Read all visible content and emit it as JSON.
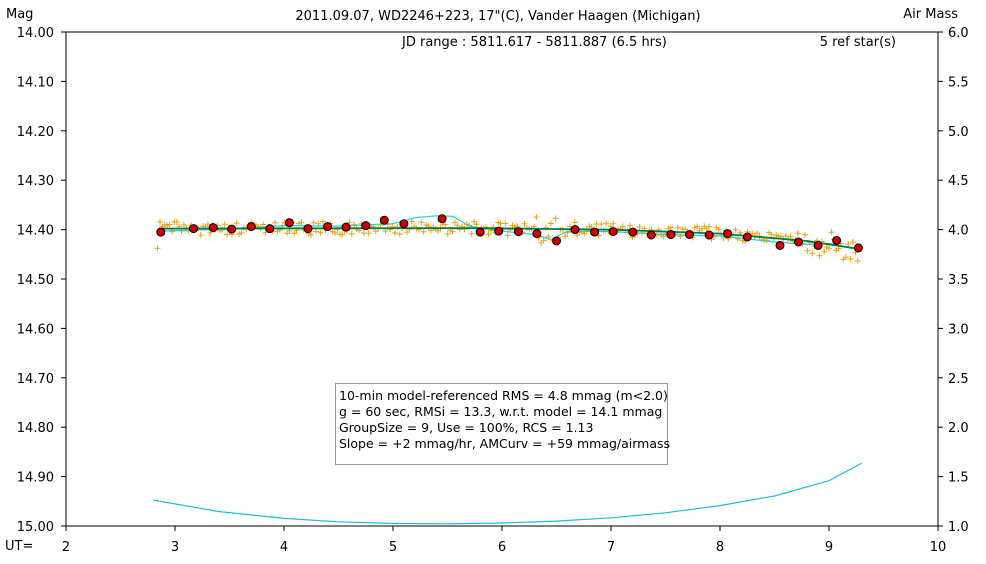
{
  "chart_data": {
    "type": "scatter",
    "title": "2011.09.07, WD2246+223, 17\"(C), Vander Haagen (Michigan)",
    "ylabel": "Mag",
    "y2label": "Air Mass",
    "xlabel": "UT=",
    "jd_range": "JD range : 5811.617 - 5811.887 (6.5 hrs)",
    "ref_stars": "5 ref star(s)",
    "xlim": [
      2,
      10
    ],
    "ylim": [
      15.0,
      14.0
    ],
    "y2lim": [
      1.0,
      6.0
    ],
    "x_ticks": [
      "2",
      "3",
      "4",
      "5",
      "6",
      "7",
      "8",
      "9",
      "10"
    ],
    "y_ticks": [
      "14.00",
      "14.10",
      "14.20",
      "14.30",
      "14.40",
      "14.50",
      "14.60",
      "14.70",
      "14.80",
      "14.90",
      "15.00"
    ],
    "y2_ticks": [
      "6.0",
      "5.5",
      "5.0",
      "4.5",
      "4.0",
      "3.5",
      "3.0",
      "2.5",
      "2.0",
      "1.5",
      "1.0"
    ],
    "stats": [
      "10-min model-referenced RMS = 4.8 mmag (m<2.0)",
      "g = 60 sec, RMSi = 13.3, w.r.t. model = 14.1 mmag",
      "GroupSize = 9, Use = 100%, RCS = 1.13",
      "Slope = +2 mmag/hr, AMCurv = +59 mmag/airmass"
    ],
    "colors": {
      "individual": "#e8a317",
      "binned_fill": "#cc0000",
      "model": "#007a4a",
      "smooth": "#33cccc",
      "airmass": "#22bbdd"
    },
    "series": [
      {
        "kind": "binned",
        "x": [
          2.87,
          3.17,
          3.35,
          3.52,
          3.7,
          3.87,
          4.05,
          4.22,
          4.4,
          4.57,
          4.75,
          4.92,
          5.1,
          5.45,
          5.8,
          5.97,
          6.15,
          6.32,
          6.5,
          6.67,
          6.85,
          7.02,
          7.2,
          7.37,
          7.55,
          7.72,
          7.9,
          8.07,
          8.25,
          8.55,
          8.72,
          8.9,
          9.07,
          9.27
        ],
        "y": [
          14.405,
          14.398,
          14.396,
          14.399,
          14.394,
          14.398,
          14.386,
          14.398,
          14.394,
          14.395,
          14.392,
          14.381,
          14.388,
          14.378,
          14.405,
          14.403,
          14.404,
          14.408,
          14.423,
          14.4,
          14.405,
          14.404,
          14.405,
          14.411,
          14.41,
          14.41,
          14.411,
          14.408,
          14.415,
          14.432,
          14.425,
          14.432,
          14.422,
          14.437
        ]
      },
      {
        "kind": "model",
        "x": [
          2.85,
          5.7,
          7.0,
          8.0,
          8.8,
          9.3
        ],
        "y": [
          14.398,
          14.397,
          14.4,
          14.408,
          14.423,
          14.44
        ]
      },
      {
        "kind": "smooth",
        "x": [
          2.85,
          3.5,
          4.0,
          4.5,
          5.0,
          5.2,
          5.4,
          5.55,
          5.7,
          6.0,
          6.3,
          6.45,
          6.6,
          7.0,
          7.5,
          8.0,
          8.3,
          8.5,
          8.8,
          9.0,
          9.3
        ],
        "y": [
          14.403,
          14.399,
          14.392,
          14.393,
          14.388,
          14.376,
          14.372,
          14.373,
          14.393,
          14.403,
          14.41,
          14.42,
          14.403,
          14.404,
          14.41,
          14.413,
          14.42,
          14.425,
          14.43,
          14.428,
          14.44
        ]
      },
      {
        "kind": "airmass",
        "x": [
          2.8,
          3.4,
          4.0,
          4.5,
          5.0,
          5.5,
          6.0,
          6.5,
          7.0,
          7.5,
          8.0,
          8.5,
          9.0,
          9.3
        ],
        "y": [
          1.262,
          1.147,
          1.077,
          1.043,
          1.025,
          1.022,
          1.03,
          1.05,
          1.083,
          1.134,
          1.206,
          1.304,
          1.459,
          1.637
        ]
      }
    ]
  }
}
